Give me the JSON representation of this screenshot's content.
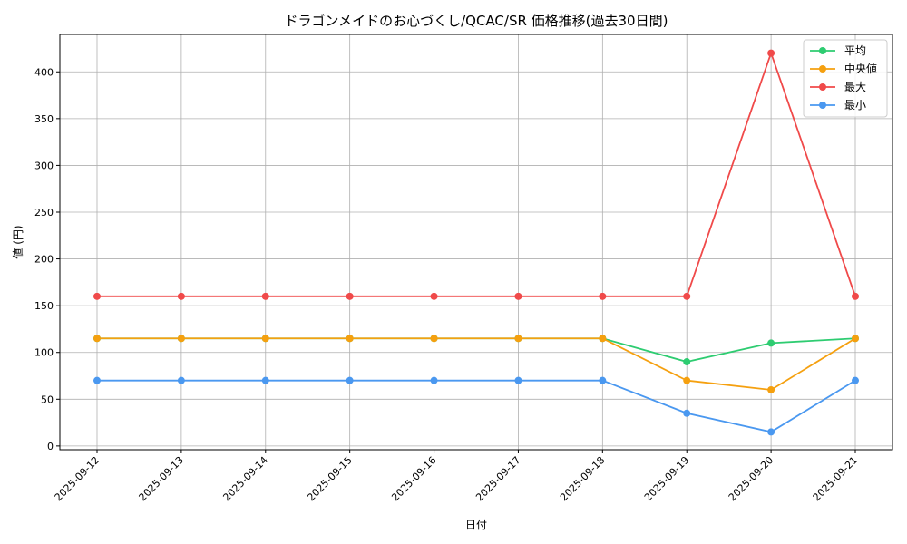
{
  "chart_data": {
    "type": "line",
    "title": "ドラゴンメイドのお心づくし/QCAC/SR 価格推移(過去30日間)",
    "xlabel": "日付",
    "ylabel": "値 (円)",
    "categories": [
      "2025-09-12",
      "2025-09-13",
      "2025-09-14",
      "2025-09-15",
      "2025-09-16",
      "2025-09-17",
      "2025-09-18",
      "2025-09-19",
      "2025-09-20",
      "2025-09-21"
    ],
    "ylim": [
      -4,
      440
    ],
    "yticks": [
      0,
      50,
      100,
      150,
      200,
      250,
      300,
      350,
      400
    ],
    "grid": true,
    "legend_position": "top-right",
    "series": [
      {
        "name": "平均",
        "color": "#2ecc71",
        "values": [
          115,
          115,
          115,
          115,
          115,
          115,
          115,
          90,
          110,
          115
        ]
      },
      {
        "name": "中央値",
        "color": "#f5a00f",
        "values": [
          115,
          115,
          115,
          115,
          115,
          115,
          115,
          70,
          60,
          115
        ]
      },
      {
        "name": "最大",
        "color": "#f04a4a",
        "values": [
          160,
          160,
          160,
          160,
          160,
          160,
          160,
          160,
          420,
          160
        ]
      },
      {
        "name": "最小",
        "color": "#4a98f0",
        "values": [
          70,
          70,
          70,
          70,
          70,
          70,
          70,
          35,
          15,
          70
        ]
      }
    ]
  }
}
